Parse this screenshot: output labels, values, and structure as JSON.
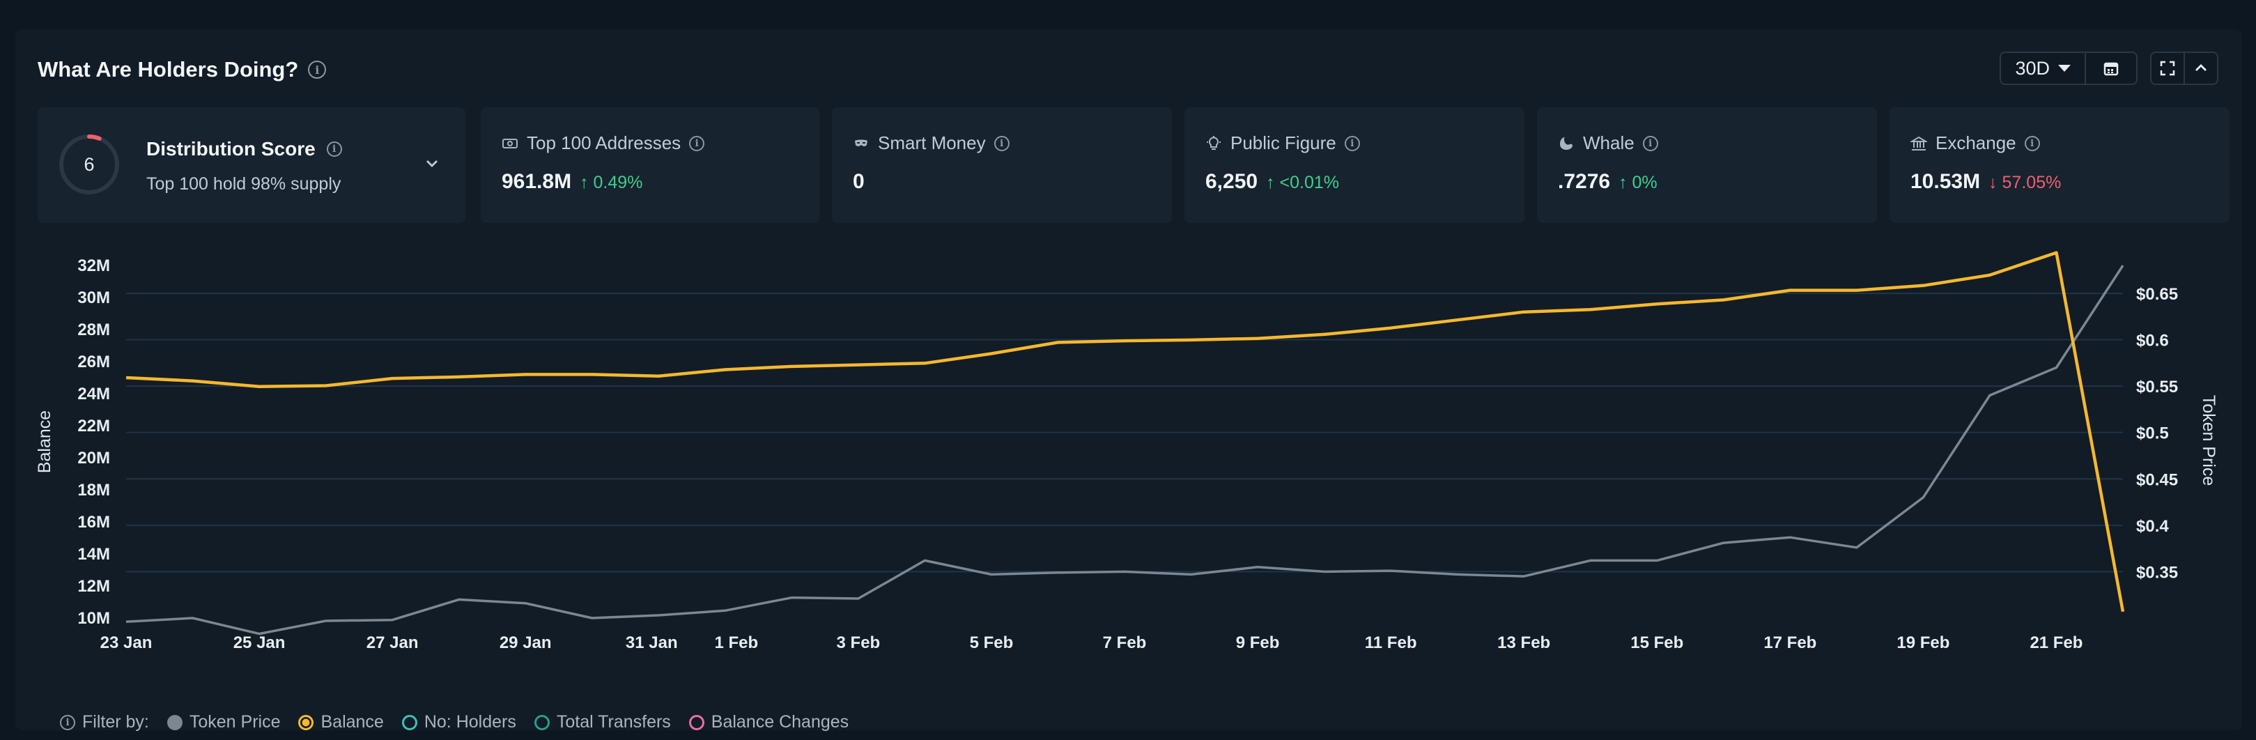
{
  "header": {
    "title": "What Are Holders Doing?",
    "period": "30D"
  },
  "distribution": {
    "score": "6",
    "score_fraction": 0.06,
    "title": "Distribution Score",
    "subtitle": "Top 100 hold 98% supply"
  },
  "cards": [
    {
      "label": "Top 100 Addresses",
      "value": "961.8M",
      "delta": "0.49%",
      "direction": "up",
      "icon": "cash-icon"
    },
    {
      "label": "Smart Money",
      "value": "0",
      "delta": "",
      "direction": "none",
      "icon": "mask-icon"
    },
    {
      "label": "Public Figure",
      "value": "6,250",
      "delta": "<0.01%",
      "direction": "up",
      "icon": "lightbulb-icon"
    },
    {
      "label": "Whale",
      "value": ".7276",
      "delta": "0%",
      "direction": "up",
      "icon": "whale-icon"
    },
    {
      "label": "Exchange",
      "value": "10.53M",
      "delta": "57.05%",
      "direction": "down",
      "icon": "bank-icon"
    }
  ],
  "chart_data": {
    "type": "line",
    "ylabel": "Balance",
    "y2label": "Token Price",
    "y_ticks": [
      "10M",
      "12M",
      "14M",
      "16M",
      "18M",
      "20M",
      "22M",
      "24M",
      "26M",
      "28M",
      "30M",
      "32M"
    ],
    "y2_ticks": [
      "$0.35",
      "$0.4",
      "$0.45",
      "$0.5",
      "$0.55",
      "$0.6",
      "$0.65"
    ],
    "x_ticks": [
      "23 Jan",
      "25 Jan",
      "27 Jan",
      "29 Jan",
      "31 Jan",
      "1 Feb",
      "3 Feb",
      "5 Feb",
      "7 Feb",
      "9 Feb",
      "11 Feb",
      "13 Feb",
      "15 Feb",
      "17 Feb",
      "19 Feb",
      "21 Feb"
    ],
    "ylim": [
      10,
      32
    ],
    "y2lim": [
      0.3,
      0.68
    ],
    "grid": true,
    "series": [
      {
        "name": "Balance",
        "axis": "left",
        "color": "#f5b82e",
        "values": [
          25.0,
          24.8,
          24.45,
          24.5,
          24.95,
          25.05,
          25.2,
          25.2,
          25.1,
          25.5,
          25.7,
          25.8,
          25.9,
          26.5,
          27.2,
          27.3,
          27.35,
          27.45,
          27.7,
          28.1,
          28.6,
          29.1,
          29.25,
          29.6,
          29.85,
          30.45,
          30.45,
          30.75,
          31.4,
          32.8,
          10.4
        ]
      },
      {
        "name": "Token Price",
        "axis": "right",
        "color": "#7d8791",
        "values": [
          0.296,
          0.3,
          0.283,
          0.297,
          0.298,
          0.32,
          0.316,
          0.3,
          0.303,
          0.308,
          0.322,
          0.321,
          0.362,
          0.347,
          0.349,
          0.35,
          0.347,
          0.355,
          0.35,
          0.351,
          0.347,
          0.345,
          0.362,
          0.362,
          0.381,
          0.387,
          0.376,
          0.43,
          0.54,
          0.57,
          0.68
        ]
      }
    ]
  },
  "legend": {
    "filter_label": "Filter by:",
    "items": [
      {
        "label": "Token Price",
        "style": "filled",
        "color": "#7d8791"
      },
      {
        "label": "Balance",
        "style": "ring-filled",
        "color": "#f5b82e"
      },
      {
        "label": "No: Holders",
        "style": "ring",
        "color": "#3fc1b0"
      },
      {
        "label": "Total Transfers",
        "style": "ring",
        "color": "#2a9d8f"
      },
      {
        "label": "Balance Changes",
        "style": "ring",
        "color": "#e86fa6"
      }
    ]
  }
}
